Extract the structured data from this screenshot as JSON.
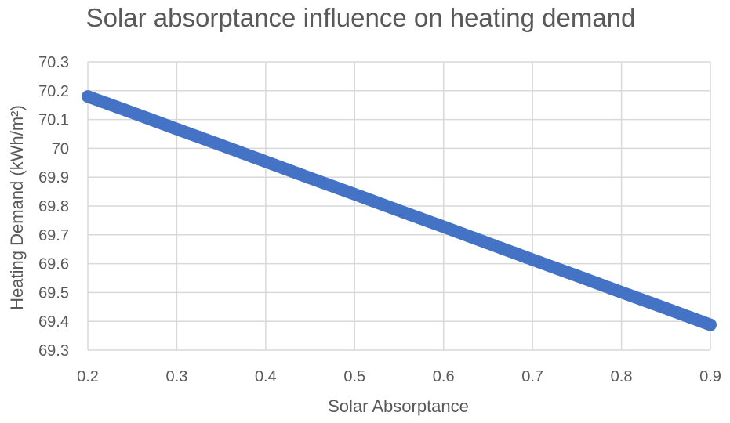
{
  "chart_data": {
    "type": "scatter",
    "title": "Solar absorptance influence on heating demand",
    "xlabel": "Solar Absorptance",
    "ylabel": "Heating Demand (kWh/m²)",
    "xlim": [
      0.2,
      0.9
    ],
    "ylim": [
      69.3,
      70.3
    ],
    "xticks": [
      "0.2",
      "0.3",
      "0.4",
      "0.5",
      "0.6",
      "0.7",
      "0.8",
      "0.9"
    ],
    "yticks": [
      "70.3",
      "70.2",
      "70.1",
      "70",
      "69.9",
      "69.8",
      "69.7",
      "69.6",
      "69.5",
      "69.4",
      "69.3"
    ],
    "grid": true,
    "legend": "none",
    "marker_color": "#4472C4",
    "series": [
      {
        "x": [
          0.2,
          0.25,
          0.3,
          0.35,
          0.4,
          0.45,
          0.5,
          0.55,
          0.6,
          0.65,
          0.7,
          0.75,
          0.8,
          0.85,
          0.9
        ],
        "y": [
          70.18,
          70.124,
          70.067,
          70.011,
          69.954,
          69.897,
          69.841,
          69.784,
          69.728,
          69.671,
          69.614,
          69.558,
          69.501,
          69.445,
          69.388
        ]
      }
    ]
  }
}
